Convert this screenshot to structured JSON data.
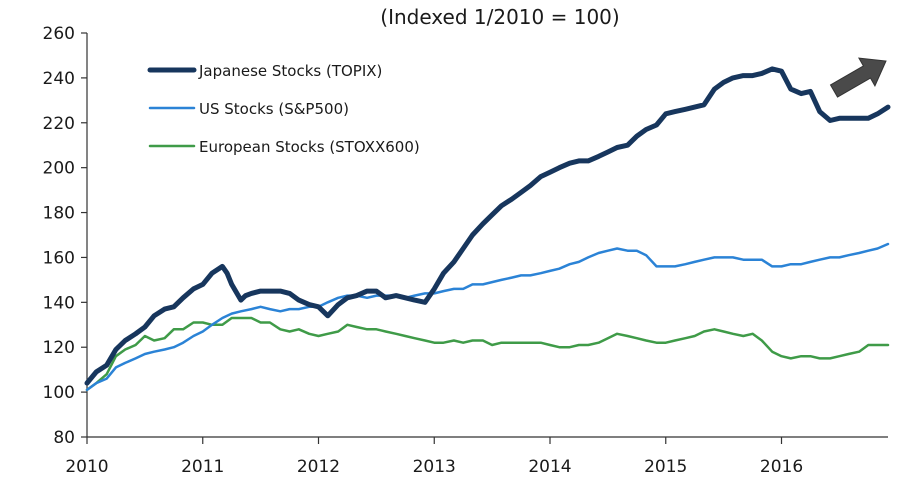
{
  "chart_data": {
    "type": "line",
    "title": "(Indexed  1/2010 = 100)",
    "xlabel": "",
    "ylabel": "",
    "xlim": [
      2010.0,
      2016.92
    ],
    "ylim": [
      80,
      260
    ],
    "y_ticks": [
      80,
      100,
      120,
      140,
      160,
      180,
      200,
      220,
      240,
      260
    ],
    "x_ticks": [
      2010,
      2011,
      2012,
      2013,
      2014,
      2015,
      2016
    ],
    "x_tick_labels": [
      "2010",
      "2011",
      "2012",
      "2013",
      "2014",
      "2015",
      "2016"
    ],
    "grid": false,
    "legend_position": "top-left",
    "annotation": "up-arrow",
    "series": [
      {
        "name": "Japanese Stocks (TOPIX)",
        "color": "#17365d",
        "width": 5,
        "x": [
          2010.0,
          2010.08,
          2010.17,
          2010.25,
          2010.33,
          2010.42,
          2010.5,
          2010.58,
          2010.67,
          2010.75,
          2010.83,
          2010.92,
          2011.0,
          2011.08,
          2011.17,
          2011.21,
          2011.25,
          2011.33,
          2011.37,
          2011.42,
          2011.5,
          2011.58,
          2011.67,
          2011.75,
          2011.83,
          2011.92,
          2012.0,
          2012.08,
          2012.17,
          2012.25,
          2012.33,
          2012.42,
          2012.5,
          2012.58,
          2012.67,
          2012.75,
          2012.83,
          2012.92,
          2013.0,
          2013.08,
          2013.17,
          2013.25,
          2013.33,
          2013.42,
          2013.5,
          2013.58,
          2013.67,
          2013.75,
          2013.83,
          2013.92,
          2014.0,
          2014.08,
          2014.17,
          2014.25,
          2014.33,
          2014.42,
          2014.5,
          2014.58,
          2014.67,
          2014.75,
          2014.83,
          2014.92,
          2015.0,
          2015.08,
          2015.17,
          2015.25,
          2015.33,
          2015.42,
          2015.5,
          2015.58,
          2015.67,
          2015.75,
          2015.83,
          2015.92,
          2016.0,
          2016.08,
          2016.17,
          2016.25,
          2016.33,
          2016.42,
          2016.5,
          2016.58,
          2016.67,
          2016.75,
          2016.83,
          2016.92
        ],
        "y": [
          104,
          109,
          112,
          119,
          123,
          126,
          129,
          134,
          137,
          138,
          142,
          146,
          148,
          153,
          156,
          153,
          148,
          141,
          143,
          144,
          145,
          145,
          145,
          144,
          141,
          139,
          138,
          134,
          139,
          142,
          143,
          145,
          145,
          142,
          143,
          142,
          141,
          140,
          146,
          153,
          158,
          164,
          170,
          175,
          179,
          183,
          186,
          189,
          192,
          196,
          198,
          200,
          202,
          203,
          203,
          205,
          207,
          209,
          210,
          214,
          217,
          219,
          224,
          225,
          226,
          227,
          228,
          235,
          238,
          240,
          241,
          241,
          242,
          244,
          243,
          235,
          233,
          234,
          225,
          221,
          222,
          222,
          222,
          222,
          224,
          227
        ]
      },
      {
        "name": "US Stocks (S&P500)",
        "color": "#2b83d6",
        "width": 2.5,
        "x": [
          2010.0,
          2010.08,
          2010.17,
          2010.25,
          2010.33,
          2010.42,
          2010.5,
          2010.58,
          2010.67,
          2010.75,
          2010.83,
          2010.92,
          2011.0,
          2011.08,
          2011.17,
          2011.25,
          2011.33,
          2011.42,
          2011.5,
          2011.58,
          2011.67,
          2011.75,
          2011.83,
          2011.92,
          2012.0,
          2012.08,
          2012.17,
          2012.25,
          2012.33,
          2012.42,
          2012.5,
          2012.58,
          2012.67,
          2012.75,
          2012.83,
          2012.92,
          2013.0,
          2013.08,
          2013.17,
          2013.25,
          2013.33,
          2013.42,
          2013.5,
          2013.58,
          2013.67,
          2013.75,
          2013.83,
          2013.92,
          2014.0,
          2014.08,
          2014.17,
          2014.25,
          2014.33,
          2014.42,
          2014.5,
          2014.58,
          2014.67,
          2014.75,
          2014.83,
          2014.92,
          2015.0,
          2015.08,
          2015.17,
          2015.25,
          2015.33,
          2015.42,
          2015.5,
          2015.58,
          2015.67,
          2015.75,
          2015.83,
          2015.92,
          2016.0,
          2016.08,
          2016.17,
          2016.25,
          2016.33,
          2016.42,
          2016.5,
          2016.58,
          2016.67,
          2016.75,
          2016.83,
          2016.92
        ],
        "y": [
          101,
          104,
          106,
          111,
          113,
          115,
          117,
          118,
          119,
          120,
          122,
          125,
          127,
          130,
          133,
          135,
          136,
          137,
          138,
          137,
          136,
          137,
          137,
          138,
          138,
          140,
          142,
          143,
          143,
          142,
          143,
          143,
          143,
          142,
          143,
          144,
          144,
          145,
          146,
          146,
          148,
          148,
          149,
          150,
          151,
          152,
          152,
          153,
          154,
          155,
          157,
          158,
          160,
          162,
          163,
          164,
          163,
          163,
          161,
          156,
          156,
          156,
          157,
          158,
          159,
          160,
          160,
          160,
          159,
          159,
          159,
          156,
          156,
          157,
          157,
          158,
          159,
          160,
          160,
          161,
          162,
          163,
          164,
          166
        ]
      },
      {
        "name": "European Stocks (STOXX600)",
        "color": "#3f9b48",
        "width": 2.5,
        "x": [
          2010.0,
          2010.08,
          2010.17,
          2010.25,
          2010.33,
          2010.42,
          2010.5,
          2010.58,
          2010.67,
          2010.75,
          2010.83,
          2010.92,
          2011.0,
          2011.08,
          2011.17,
          2011.25,
          2011.33,
          2011.42,
          2011.5,
          2011.58,
          2011.67,
          2011.75,
          2011.83,
          2011.92,
          2012.0,
          2012.08,
          2012.17,
          2012.25,
          2012.33,
          2012.42,
          2012.5,
          2012.58,
          2012.67,
          2012.75,
          2012.83,
          2012.92,
          2013.0,
          2013.08,
          2013.17,
          2013.25,
          2013.33,
          2013.42,
          2013.5,
          2013.58,
          2013.67,
          2013.75,
          2013.83,
          2013.92,
          2014.0,
          2014.08,
          2014.17,
          2014.25,
          2014.33,
          2014.42,
          2014.5,
          2014.58,
          2014.67,
          2014.75,
          2014.83,
          2014.92,
          2015.0,
          2015.08,
          2015.17,
          2015.25,
          2015.33,
          2015.42,
          2015.5,
          2015.58,
          2015.67,
          2015.75,
          2015.83,
          2015.92,
          2016.0,
          2016.08,
          2016.17,
          2016.25,
          2016.33,
          2016.42,
          2016.5,
          2016.58,
          2016.67,
          2016.75,
          2016.83,
          2016.92
        ],
        "y": [
          101,
          104,
          108,
          116,
          119,
          121,
          125,
          123,
          124,
          128,
          128,
          131,
          131,
          130,
          130,
          133,
          133,
          133,
          131,
          131,
          128,
          127,
          128,
          126,
          125,
          126,
          127,
          130,
          129,
          128,
          128,
          127,
          126,
          125,
          124,
          123,
          122,
          122,
          123,
          122,
          123,
          123,
          121,
          122,
          122,
          122,
          122,
          122,
          121,
          120,
          120,
          121,
          121,
          122,
          124,
          126,
          125,
          124,
          123,
          122,
          122,
          123,
          124,
          125,
          127,
          128,
          127,
          126,
          125,
          126,
          123,
          118,
          116,
          115,
          116,
          116,
          115,
          115,
          116,
          117,
          118,
          121,
          121,
          121
        ]
      }
    ]
  }
}
